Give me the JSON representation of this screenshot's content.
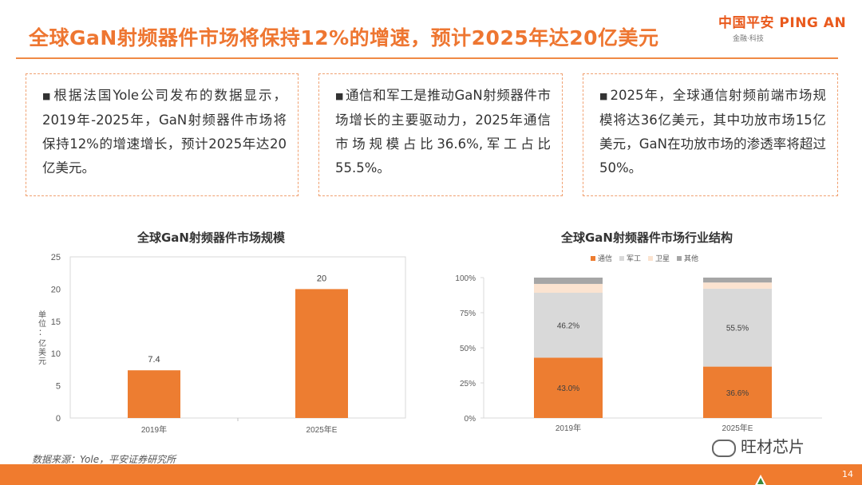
{
  "title": "全球GaN射频器件市场将保持12%的增速，预计2025年达20亿美元",
  "logo": {
    "text": "中国平安 PING AN",
    "sub": "金融·科技"
  },
  "boxes": [
    "根据法国Yole公司发布的数据显示，2019年-2025年，GaN射频器件市场将保持12%的增速增长，预计2025年达20亿美元。",
    "通信和军工是推动GaN射频器件市场增长的主要驱动力，2025年通信市场规模占比36.6%,军工占比55.5%。",
    "2025年，全球通信射频前端市场规模将达36亿美元，其中功放市场15亿美元，GaN在功放市场的渗透率将超过50%。"
  ],
  "bullet": "■",
  "source": "数据来源：Yole，平安证券研究所",
  "watermark": "旺材芯片",
  "page_number": "14",
  "colors": {
    "orange": "#ed7d31",
    "gray": "#d9d9d9",
    "peach": "#fbe3d0",
    "dark": "#a6a6a6"
  },
  "chart_data": [
    {
      "type": "bar",
      "title": "全球GaN射频器件市场规模",
      "ylabel": "单位：亿美元",
      "categories": [
        "2019年",
        "2025年E"
      ],
      "values": [
        7.4,
        20
      ],
      "data_labels": [
        "7.4",
        "20"
      ],
      "ylim": [
        0,
        25
      ],
      "yticks": [
        "0",
        "5",
        "10",
        "15",
        "20",
        "25"
      ],
      "grid": false
    },
    {
      "type": "bar",
      "stacked": true,
      "title": "全球GaN射频器件市场行业结构",
      "categories": [
        "2019年",
        "2025年E"
      ],
      "legend": "top",
      "ylim": [
        0,
        100
      ],
      "yticks": [
        "0%",
        "25%",
        "50%",
        "75%",
        "100%"
      ],
      "series": [
        {
          "name": "通信",
          "values": [
            43.0,
            36.6
          ],
          "labels": [
            "43.0%",
            "36.6%"
          ]
        },
        {
          "name": "军工",
          "values": [
            46.2,
            55.5
          ],
          "labels": [
            "46.2%",
            "55.5%"
          ]
        },
        {
          "name": "卫星",
          "values": [
            6.3,
            4.4
          ],
          "labels": [
            "",
            ""
          ]
        },
        {
          "name": "其他",
          "values": [
            4.5,
            3.5
          ],
          "labels": [
            "",
            ""
          ]
        }
      ]
    }
  ]
}
